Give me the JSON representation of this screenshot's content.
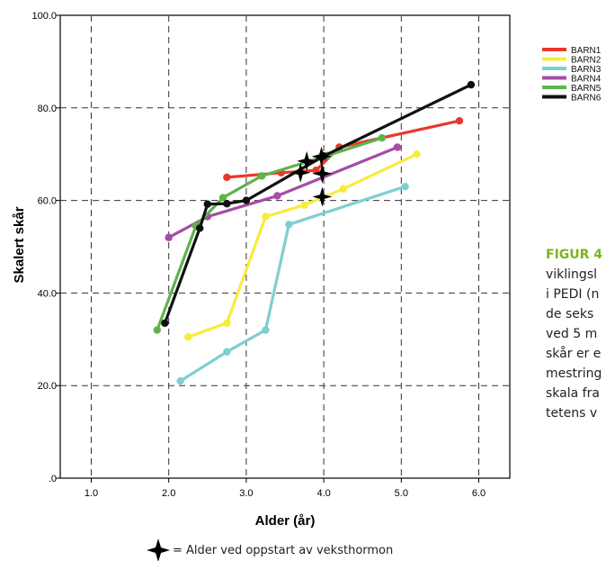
{
  "chart_data": {
    "type": "line",
    "xlabel": "Alder (år)",
    "ylabel": "Skalert skår",
    "xlim": [
      0.6,
      6.4
    ],
    "ylim": [
      0,
      100
    ],
    "x_ticks": [
      "1.0",
      "2.0",
      "3.0",
      "4.0",
      "5.0",
      "6.0"
    ],
    "y_ticks": [
      ".0",
      "20.0",
      "40.0",
      "60.0",
      "80.0",
      "100.0"
    ],
    "grid": true,
    "legend_position": "right",
    "series": [
      {
        "name": "BARN1",
        "color": "#e8382c",
        "points": [
          [
            2.75,
            65.0
          ],
          [
            3.45,
            66.0
          ],
          [
            3.9,
            66.5
          ],
          [
            4.2,
            71.5
          ],
          [
            5.75,
            77.2
          ]
        ]
      },
      {
        "name": "BARN2",
        "color": "#f7ec3c",
        "points": [
          [
            2.25,
            30.5
          ],
          [
            2.75,
            33.5
          ],
          [
            3.25,
            56.5
          ],
          [
            3.75,
            59.0
          ],
          [
            4.25,
            62.5
          ],
          [
            5.2,
            70.0
          ]
        ]
      },
      {
        "name": "BARN3",
        "color": "#7ecfcf",
        "points": [
          [
            2.15,
            21.0
          ],
          [
            2.75,
            27.3
          ],
          [
            3.25,
            32.0
          ],
          [
            3.55,
            54.8
          ],
          [
            5.05,
            63.0
          ]
        ]
      },
      {
        "name": "BARN4",
        "color": "#a64ca6",
        "points": [
          [
            2.0,
            52.0
          ],
          [
            2.5,
            56.5
          ],
          [
            3.4,
            61.0
          ],
          [
            4.95,
            71.5
          ]
        ]
      },
      {
        "name": "BARN5",
        "color": "#5db44a",
        "points": [
          [
            1.85,
            32.0
          ],
          [
            2.35,
            54.5
          ],
          [
            2.7,
            60.6
          ],
          [
            3.2,
            65.3
          ],
          [
            4.05,
            69.7
          ],
          [
            4.75,
            73.5
          ]
        ]
      },
      {
        "name": "BARN6",
        "color": "#111111",
        "points": [
          [
            1.95,
            33.5
          ],
          [
            2.4,
            54.0
          ],
          [
            2.5,
            59.2
          ],
          [
            2.75,
            59.3
          ],
          [
            3.0,
            60.0
          ],
          [
            4.0,
            69.6
          ],
          [
            5.9,
            85.0
          ]
        ]
      }
    ],
    "markers": [
      [
        3.7,
        66.0
      ],
      [
        3.78,
        68.5
      ],
      [
        3.97,
        69.5
      ],
      [
        3.98,
        65.8
      ],
      [
        3.98,
        60.8
      ]
    ],
    "marker_label": "= Alder ved oppstart av veksthormon"
  },
  "caption": {
    "title": "FIGUR 4",
    "lines": [
      "viklingsl",
      "i PEDI (n",
      "de seks",
      "ved 5 m",
      "skår er e",
      "mestring",
      "skala fra",
      "tetens v"
    ]
  },
  "colors": {
    "grid": "#333333",
    "axis": "#000000",
    "caption_title": "#7ab51d"
  }
}
